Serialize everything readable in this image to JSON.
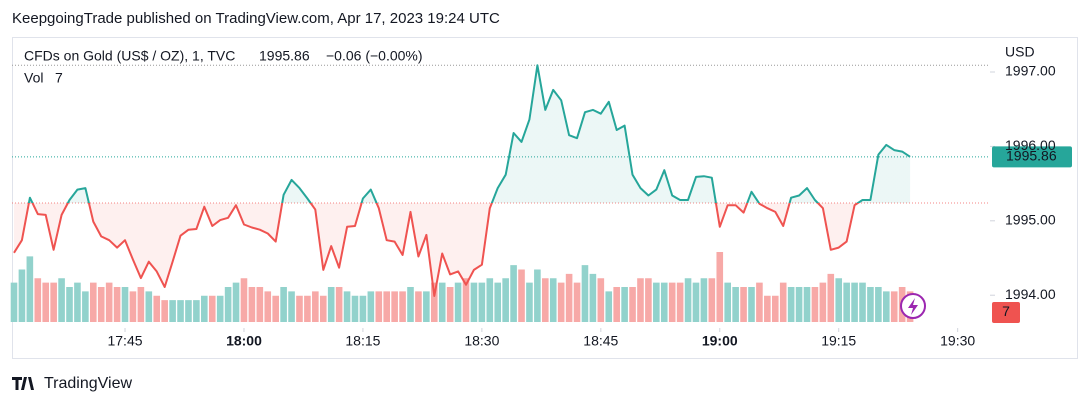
{
  "header": {
    "publisher": "KeepgoingTrade published on TradingView.com, Apr 17, 2023 19:24 UTC",
    "brand": "TradingView"
  },
  "chart_data": {
    "type": "baseline",
    "title": "CFDs on Gold (US$ / OZ), 1, TVC",
    "change": "−0.06 (−0.00%)",
    "currency": "USD",
    "baseline": 1995.24,
    "up_color": "#26a69a",
    "down_color": "#ef5350",
    "x": [
      "17:31",
      "17:32",
      "17:33",
      "17:34",
      "17:35",
      "17:36",
      "17:37",
      "17:38",
      "17:39",
      "17:40",
      "17:41",
      "17:42",
      "17:43",
      "17:44",
      "17:45",
      "17:46",
      "17:47",
      "17:48",
      "17:49",
      "17:50",
      "17:51",
      "17:52",
      "17:53",
      "17:54",
      "17:55",
      "17:56",
      "17:57",
      "17:58",
      "17:59",
      "18:00",
      "18:01",
      "18:02",
      "18:03",
      "18:04",
      "18:05",
      "18:06",
      "18:07",
      "18:08",
      "18:09",
      "18:10",
      "18:11",
      "18:12",
      "18:13",
      "18:14",
      "18:15",
      "18:16",
      "18:17",
      "18:18",
      "18:19",
      "18:20",
      "18:21",
      "18:22",
      "18:23",
      "18:24",
      "18:25",
      "18:26",
      "18:27",
      "18:28",
      "18:29",
      "18:30",
      "18:31",
      "18:32",
      "18:33",
      "18:34",
      "18:35",
      "18:36",
      "18:37",
      "18:38",
      "18:39",
      "18:40",
      "18:41",
      "18:42",
      "18:43",
      "18:44",
      "18:45",
      "18:46",
      "18:47",
      "18:48",
      "18:49",
      "18:50",
      "18:51",
      "18:52",
      "18:53",
      "18:54",
      "18:55",
      "18:56",
      "18:57",
      "18:58",
      "18:59",
      "19:00",
      "19:01",
      "19:02",
      "19:03",
      "19:04",
      "19:05",
      "19:06",
      "19:07",
      "19:08",
      "19:09",
      "19:10",
      "19:11",
      "19:12",
      "19:13",
      "19:14",
      "19:15",
      "19:16",
      "19:17",
      "19:18",
      "19:19",
      "19:20",
      "19:21",
      "19:22",
      "19:23",
      "19:24"
    ],
    "series": [
      {
        "name": "CFDs on Gold",
        "values": [
          1994.57,
          1994.74,
          1995.31,
          1995.09,
          1995.08,
          1994.61,
          1995.08,
          1995.28,
          1995.42,
          1995.44,
          1994.99,
          1994.79,
          1994.74,
          1994.64,
          1994.74,
          1994.48,
          1994.23,
          1994.45,
          1994.32,
          1994.11,
          1994.45,
          1994.8,
          1994.88,
          1994.89,
          1995.19,
          1994.93,
          1995.01,
          1995.04,
          1995.21,
          1994.95,
          1994.91,
          1994.88,
          1994.83,
          1994.72,
          1995.35,
          1995.55,
          1995.44,
          1995.3,
          1995.15,
          1994.34,
          1994.66,
          1994.37,
          1994.92,
          1994.93,
          1995.3,
          1995.42,
          1995.17,
          1994.74,
          1994.72,
          1994.54,
          1995.12,
          1994.52,
          1994.81,
          1993.99,
          1994.56,
          1994.28,
          1994.32,
          1994.14,
          1994.34,
          1994.41,
          1995.17,
          1995.44,
          1995.62,
          1996.18,
          1996.06,
          1996.36,
          1997.09,
          1996.49,
          1996.76,
          1996.62,
          1996.15,
          1996.11,
          1996.46,
          1996.49,
          1996.44,
          1996.6,
          1996.22,
          1996.28,
          1995.62,
          1995.44,
          1995.34,
          1995.42,
          1995.68,
          1995.34,
          1995.28,
          1995.28,
          1995.59,
          1995.6,
          1995.58,
          1994.92,
          1995.21,
          1995.21,
          1995.11,
          1995.39,
          1995.23,
          1995.17,
          1995.12,
          1994.93,
          1995.31,
          1995.34,
          1995.44,
          1995.28,
          1995.17,
          1994.61,
          1994.64,
          1994.72,
          1995.21,
          1995.28,
          1995.28,
          1995.89,
          1996.02,
          1995.95,
          1995.93,
          1995.86
        ]
      }
    ],
    "volume": {
      "name": "Vol",
      "up_color": "#92d2cc",
      "down_color": "#f7a9a7",
      "values": [
        9,
        12,
        15,
        10,
        9,
        9,
        10,
        8,
        9,
        7,
        9,
        8,
        9,
        8,
        8,
        7,
        8,
        7,
        6,
        5,
        5,
        5,
        5,
        5,
        6,
        6,
        6,
        8,
        9,
        10,
        8,
        8,
        7,
        6,
        8,
        7,
        6,
        6,
        7,
        6,
        8,
        8,
        7,
        6,
        6,
        7,
        7,
        7,
        7,
        7,
        8,
        7,
        7,
        9,
        9,
        8,
        9,
        10,
        9,
        9,
        10,
        9,
        10,
        13,
        12,
        9,
        12,
        10,
        10,
        9,
        11,
        9,
        13,
        11,
        10,
        7,
        8,
        8,
        8,
        10,
        10,
        9,
        9,
        9,
        9,
        10,
        9,
        10,
        10,
        16,
        9,
        8,
        8,
        8,
        9,
        6,
        6,
        9,
        8,
        8,
        8,
        8,
        9,
        11,
        10,
        9,
        9,
        9,
        8,
        8,
        7,
        7,
        8,
        7
      ]
    },
    "ylim": [
      1993.64,
      1997.43
    ],
    "yticks": [
      {
        "value": 1994,
        "label": "1994.00"
      },
      {
        "value": 1995,
        "label": "1995.00"
      },
      {
        "value": 1996,
        "label": "1996.00"
      },
      {
        "value": 1997,
        "label": "1997.00"
      }
    ],
    "xticks": [
      "17:45",
      "18:00",
      "18:15",
      "18:30",
      "18:45",
      "19:00",
      "19:15",
      "19:30"
    ]
  }
}
